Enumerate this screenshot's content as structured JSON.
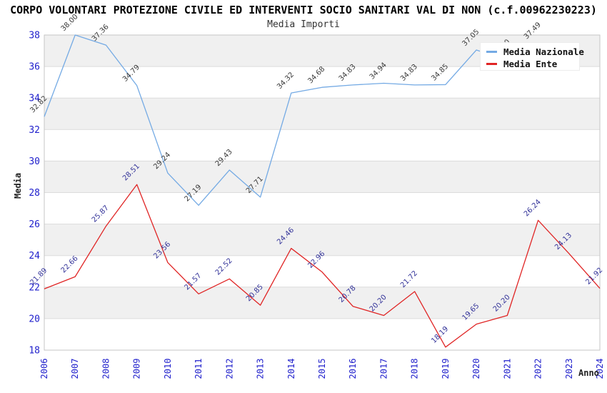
{
  "header": {
    "title": "CORPO VOLONTARI PROTEZIONE CIVILE ED INTERVENTI SOCIO SANITARI VAL DI NON (c.f.00962230223)",
    "subtitle": "Media Importi"
  },
  "axes": {
    "x_title": "Anno",
    "y_title": "Media",
    "y_ticks": [
      18,
      20,
      22,
      24,
      26,
      28,
      30,
      32,
      34,
      36,
      38
    ],
    "x_ticks": [
      "2006",
      "2007",
      "2008",
      "2009",
      "2010",
      "2011",
      "2012",
      "2013",
      "2014",
      "2015",
      "2016",
      "2017",
      "2018",
      "2019",
      "2020",
      "2021",
      "2022",
      "2023",
      "2024"
    ]
  },
  "chart_data": {
    "type": "line",
    "title": "Media Importi",
    "xlabel": "Anno",
    "ylabel": "Media",
    "ylim": [
      18,
      38
    ],
    "ytick_step": 2,
    "grid": "horizontal gridlines with alternating gray/white bands every 2 units",
    "legend_position": "top-right overlay (covers 2021 national point and line end)",
    "categories": [
      "2006",
      "2007",
      "2008",
      "2009",
      "2010",
      "2011",
      "2012",
      "2013",
      "2014",
      "2015",
      "2016",
      "2017",
      "2018",
      "2019",
      "2020",
      "2021",
      "2022",
      "2023",
      "2024"
    ],
    "series": [
      {
        "name": "Media Nazionale",
        "color": "#74aae4",
        "label_color": "#3a3a3a",
        "values": [
          32.82,
          38.0,
          37.36,
          34.79,
          29.24,
          27.19,
          29.43,
          27.71,
          34.32,
          34.68,
          34.83,
          34.94,
          34.83,
          34.85,
          37.05,
          36.4,
          37.49,
          null,
          null
        ]
      },
      {
        "name": "Media Ente",
        "color": "#e02525",
        "label_color": "#333399",
        "values": [
          21.89,
          22.66,
          25.87,
          28.51,
          23.56,
          21.57,
          22.52,
          20.85,
          24.46,
          22.96,
          20.78,
          20.2,
          21.72,
          18.19,
          19.65,
          20.2,
          26.24,
          24.13,
          21.92
        ]
      }
    ]
  },
  "style_colors": {
    "band_gray": "#f0f0f0",
    "band_white": "#ffffff",
    "gridline": "#dcdcdc",
    "plot_border": "#c6c6c6",
    "tick_label_blue": "#2020cc"
  }
}
